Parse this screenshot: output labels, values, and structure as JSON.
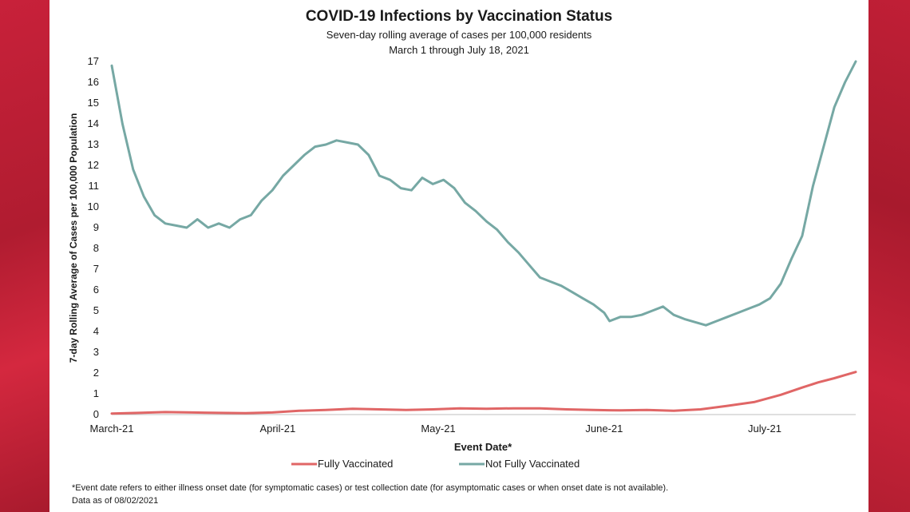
{
  "colors": {
    "fully_vaccinated": "#e06666",
    "not_fully_vaccinated": "#76a8a4",
    "background_accent": "#b51f32"
  },
  "footnote": {
    "line1": "*Event date refers to either illness onset date (for symptomatic cases) or test collection date (for asymptomatic cases or when onset date is not available).",
    "line2": "Data as of 08/02/2021"
  },
  "chart_data": {
    "type": "line",
    "title": "COVID-19 Infections by Vaccination Status",
    "subtitle": "Seven-day rolling average of cases per 100,000 residents",
    "subtitle2": "March 1 through July 18, 2021",
    "xlabel": "Event Date*",
    "ylabel": "7-day Rolling Average of Cases per 100,000 Population",
    "ylim": [
      0,
      17
    ],
    "yticks": [
      0,
      1,
      2,
      3,
      4,
      5,
      6,
      7,
      8,
      9,
      10,
      11,
      12,
      13,
      14,
      15,
      16,
      17
    ],
    "xlim": [
      "2021-03-01",
      "2021-07-18"
    ],
    "xticks": [
      {
        "date": "2021-03-01",
        "label": "March-21"
      },
      {
        "date": "2021-04-01",
        "label": "April-21"
      },
      {
        "date": "2021-05-01",
        "label": "May-21"
      },
      {
        "date": "2021-06-01",
        "label": "June-21"
      },
      {
        "date": "2021-07-01",
        "label": "July-21"
      }
    ],
    "grid": false,
    "legend": "bottom",
    "series": [
      {
        "name": "Fully Vaccinated",
        "color": "#e06666",
        "points": [
          [
            "2021-03-01",
            0.05
          ],
          [
            "2021-03-06",
            0.08
          ],
          [
            "2021-03-11",
            0.12
          ],
          [
            "2021-03-16",
            0.1
          ],
          [
            "2021-03-21",
            0.08
          ],
          [
            "2021-03-26",
            0.07
          ],
          [
            "2021-03-31",
            0.1
          ],
          [
            "2021-04-05",
            0.18
          ],
          [
            "2021-04-10",
            0.22
          ],
          [
            "2021-04-15",
            0.28
          ],
          [
            "2021-04-20",
            0.25
          ],
          [
            "2021-04-25",
            0.22
          ],
          [
            "2021-04-30",
            0.25
          ],
          [
            "2021-05-05",
            0.3
          ],
          [
            "2021-05-10",
            0.28
          ],
          [
            "2021-05-15",
            0.3
          ],
          [
            "2021-05-20",
            0.3
          ],
          [
            "2021-05-25",
            0.25
          ],
          [
            "2021-05-30",
            0.22
          ],
          [
            "2021-06-04",
            0.2
          ],
          [
            "2021-06-09",
            0.22
          ],
          [
            "2021-06-14",
            0.18
          ],
          [
            "2021-06-19",
            0.25
          ],
          [
            "2021-06-24",
            0.42
          ],
          [
            "2021-06-29",
            0.6
          ],
          [
            "2021-07-04",
            0.95
          ],
          [
            "2021-07-08",
            1.3
          ],
          [
            "2021-07-11",
            1.55
          ],
          [
            "2021-07-14",
            1.75
          ],
          [
            "2021-07-16",
            1.9
          ],
          [
            "2021-07-18",
            2.05
          ]
        ]
      },
      {
        "name": "Not Fully Vaccinated",
        "color": "#76a8a4",
        "points": [
          [
            "2021-03-01",
            16.8
          ],
          [
            "2021-03-03",
            14.0
          ],
          [
            "2021-03-05",
            11.8
          ],
          [
            "2021-03-07",
            10.5
          ],
          [
            "2021-03-09",
            9.6
          ],
          [
            "2021-03-11",
            9.2
          ],
          [
            "2021-03-13",
            9.1
          ],
          [
            "2021-03-15",
            9.0
          ],
          [
            "2021-03-17",
            9.4
          ],
          [
            "2021-03-19",
            9.0
          ],
          [
            "2021-03-21",
            9.2
          ],
          [
            "2021-03-23",
            9.0
          ],
          [
            "2021-03-25",
            9.4
          ],
          [
            "2021-03-27",
            9.6
          ],
          [
            "2021-03-29",
            10.3
          ],
          [
            "2021-03-31",
            10.8
          ],
          [
            "2021-04-02",
            11.5
          ],
          [
            "2021-04-04",
            12.0
          ],
          [
            "2021-04-06",
            12.5
          ],
          [
            "2021-04-08",
            12.9
          ],
          [
            "2021-04-10",
            13.0
          ],
          [
            "2021-04-12",
            13.2
          ],
          [
            "2021-04-14",
            13.1
          ],
          [
            "2021-04-16",
            13.0
          ],
          [
            "2021-04-18",
            12.5
          ],
          [
            "2021-04-20",
            11.5
          ],
          [
            "2021-04-22",
            11.3
          ],
          [
            "2021-04-24",
            10.9
          ],
          [
            "2021-04-26",
            10.8
          ],
          [
            "2021-04-28",
            11.4
          ],
          [
            "2021-04-30",
            11.1
          ],
          [
            "2021-05-02",
            11.3
          ],
          [
            "2021-05-04",
            10.9
          ],
          [
            "2021-05-06",
            10.2
          ],
          [
            "2021-05-08",
            9.8
          ],
          [
            "2021-05-10",
            9.3
          ],
          [
            "2021-05-12",
            8.9
          ],
          [
            "2021-05-14",
            8.3
          ],
          [
            "2021-05-16",
            7.8
          ],
          [
            "2021-05-18",
            7.2
          ],
          [
            "2021-05-20",
            6.6
          ],
          [
            "2021-05-22",
            6.4
          ],
          [
            "2021-05-24",
            6.2
          ],
          [
            "2021-05-26",
            5.9
          ],
          [
            "2021-05-28",
            5.6
          ],
          [
            "2021-05-30",
            5.3
          ],
          [
            "2021-06-01",
            4.9
          ],
          [
            "2021-06-02",
            4.5
          ],
          [
            "2021-06-04",
            4.7
          ],
          [
            "2021-06-06",
            4.7
          ],
          [
            "2021-06-08",
            4.8
          ],
          [
            "2021-06-10",
            5.0
          ],
          [
            "2021-06-12",
            5.2
          ],
          [
            "2021-06-14",
            4.8
          ],
          [
            "2021-06-16",
            4.6
          ],
          [
            "2021-06-18",
            4.45
          ],
          [
            "2021-06-20",
            4.3
          ],
          [
            "2021-06-22",
            4.5
          ],
          [
            "2021-06-24",
            4.7
          ],
          [
            "2021-06-26",
            4.9
          ],
          [
            "2021-06-28",
            5.1
          ],
          [
            "2021-06-30",
            5.3
          ],
          [
            "2021-07-02",
            5.6
          ],
          [
            "2021-07-04",
            6.3
          ],
          [
            "2021-07-06",
            7.5
          ],
          [
            "2021-07-08",
            8.6
          ],
          [
            "2021-07-10",
            11.0
          ],
          [
            "2021-07-12",
            12.9
          ],
          [
            "2021-07-14",
            14.8
          ],
          [
            "2021-07-16",
            16.0
          ],
          [
            "2021-07-18",
            17.0
          ]
        ]
      }
    ]
  }
}
